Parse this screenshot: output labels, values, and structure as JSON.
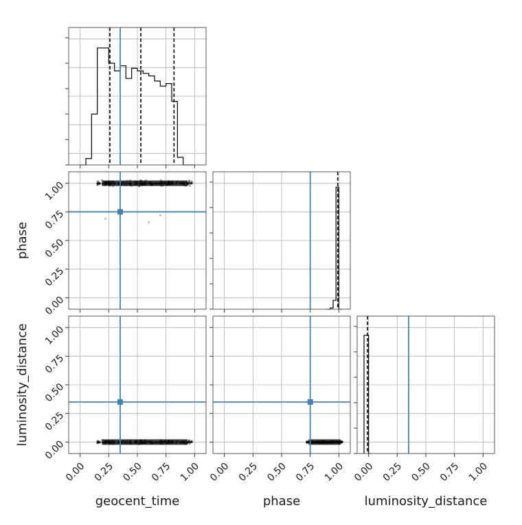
{
  "chart_data": {
    "type": "corner",
    "parameters": [
      "geocent_time",
      "phase",
      "luminosity_distance"
    ],
    "truths": {
      "geocent_time": 0.35,
      "phase": 0.75,
      "luminosity_distance": 0.35
    },
    "colors": {
      "truth": "#4682b4",
      "hist": "#000000",
      "grid": "#b0b0b0",
      "quantile": "#000000"
    },
    "ticks": [
      "0.00",
      "0.25",
      "0.50",
      "0.75",
      "1.00"
    ],
    "axis_range": [
      -0.1,
      1.1
    ],
    "grid": true,
    "panels": [
      {
        "id": "hist-geocent_time",
        "kind": "histogram",
        "parameter": "geocent_time",
        "bin_edges": [
          0.0,
          0.05,
          0.1,
          0.15,
          0.2,
          0.25,
          0.3,
          0.35,
          0.4,
          0.45,
          0.5,
          0.55,
          0.6,
          0.65,
          0.7,
          0.75,
          0.8,
          0.85,
          0.9,
          0.95,
          1.0
        ],
        "values": [
          0.0,
          0.05,
          0.4,
          0.92,
          0.92,
          0.8,
          0.74,
          0.78,
          0.68,
          0.76,
          0.74,
          0.72,
          0.7,
          0.66,
          0.62,
          0.64,
          0.5,
          0.06,
          0.0,
          0.0
        ],
        "quantiles": [
          0.26,
          0.53,
          0.82
        ]
      },
      {
        "id": "hist-phase",
        "kind": "histogram",
        "parameter": "phase",
        "bin_edges": [
          0.9,
          0.925,
          0.95,
          0.975,
          1.0,
          1.025
        ],
        "values": [
          0.0,
          0.01,
          0.07,
          0.96,
          0.0
        ],
        "quantiles": [
          0.99
        ]
      },
      {
        "id": "hist-luminosity_distance",
        "kind": "histogram",
        "parameter": "luminosity_distance",
        "bin_edges": [
          -0.04,
          -0.02,
          0.0,
          0.02
        ],
        "values": [
          0.93,
          0.93,
          0.0
        ],
        "quantiles": [
          -0.01
        ]
      },
      {
        "id": "scatter-geocent_time-phase",
        "kind": "2d",
        "x": "geocent_time",
        "y": "phase",
        "x_extent": [
          0.15,
          0.98
        ],
        "y_center": 1.0,
        "y_spread": 0.03,
        "outliers": [
          {
            "x": 0.22,
            "y": 0.69
          },
          {
            "x": 0.6,
            "y": 0.66
          },
          {
            "x": 0.7,
            "y": 0.72
          }
        ]
      },
      {
        "id": "scatter-geocent_time-luminosity_distance",
        "kind": "2d",
        "x": "geocent_time",
        "y": "luminosity_distance",
        "x_extent": [
          0.15,
          0.98
        ],
        "y_center": 0.0,
        "y_spread": 0.02,
        "outliers": []
      },
      {
        "id": "scatter-phase-luminosity_distance",
        "kind": "2d",
        "x": "phase",
        "y": "luminosity_distance",
        "x_extent": [
          0.72,
          1.03
        ],
        "y_center": 0.0,
        "y_spread": 0.01,
        "outliers": []
      }
    ]
  }
}
